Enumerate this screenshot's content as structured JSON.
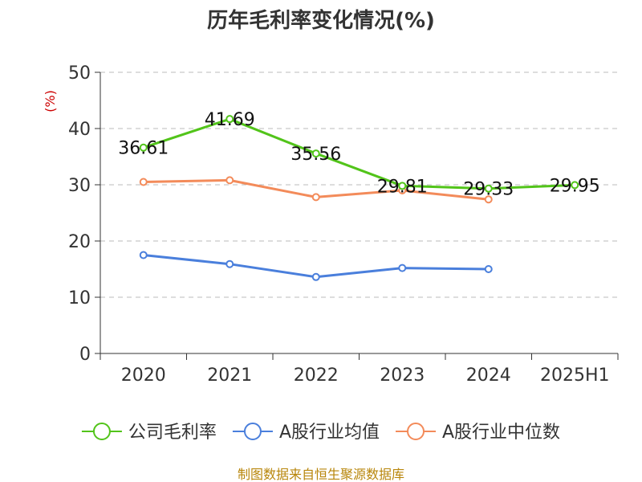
{
  "chart_data": {
    "type": "line",
    "title": "历年毛利率变化情况(%)",
    "ylabel": "(%)",
    "xlabel": "",
    "categories": [
      "2020",
      "2021",
      "2022",
      "2023",
      "2024",
      "2025H1"
    ],
    "ylim": [
      0,
      50
    ],
    "yticks": [
      0,
      10,
      20,
      30,
      40,
      50
    ],
    "grid": true,
    "legend_position": "bottom",
    "series": [
      {
        "name": "公司毛利率",
        "color": "#52c41a",
        "values": [
          36.61,
          41.69,
          35.56,
          29.81,
          29.33,
          29.95
        ],
        "labels": [
          "36.61",
          "41.69",
          "35.56",
          "29.81",
          "29.33",
          "29.95"
        ]
      },
      {
        "name": "A股行业均值",
        "color": "#4a7fdc",
        "values": [
          17.5,
          15.9,
          13.6,
          15.2,
          15.0,
          null
        ]
      },
      {
        "name": "A股行业中位数",
        "color": "#f38b5a",
        "values": [
          30.5,
          30.8,
          27.8,
          29.0,
          27.4,
          null
        ]
      }
    ],
    "source": "制图数据来自恒生聚源数据库"
  }
}
